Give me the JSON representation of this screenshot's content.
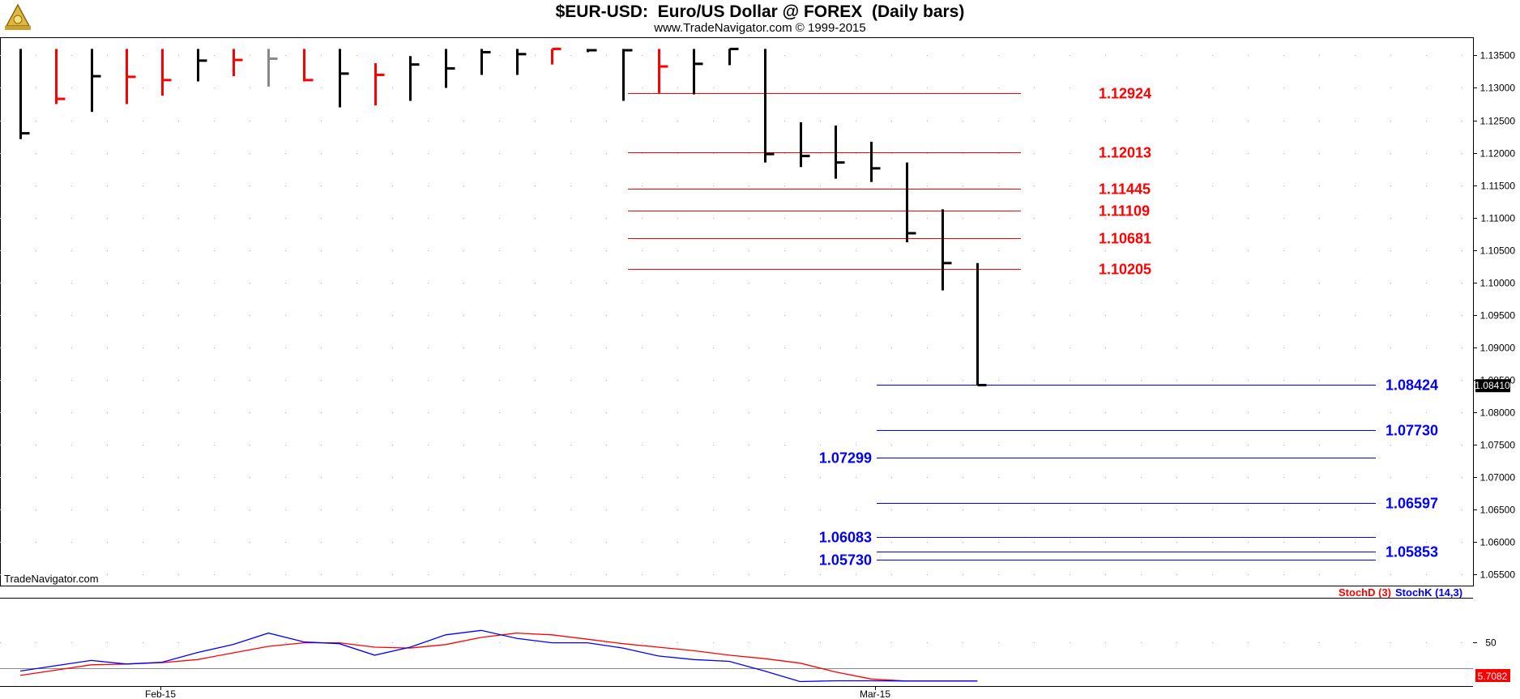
{
  "header": {
    "title": "$EUR-USD:  Euro/US Dollar @ FOREX  (Daily bars)",
    "copyright": "www.TradeNavigator.com © 1999-2015"
  },
  "watermark": "TradeNavigator.com",
  "indicator_legend": {
    "stoch_d": "StochD (3)",
    "stoch_k": "StochK (14,3)"
  },
  "colors": {
    "red": "#ff0000",
    "blue": "#0000ff",
    "black": "#000000",
    "gray": "#888888"
  },
  "chart_data": [
    {
      "type": "ohlc",
      "title": "$EUR-USD:  Euro/US Dollar @ FOREX  (Daily bars)",
      "ylim": [
        1.0533,
        1.1378
      ],
      "y_ticks": [
        "1.13500",
        "1.13000",
        "1.12500",
        "1.12000",
        "1.11500",
        "1.11000",
        "1.10500",
        "1.10000",
        "1.09500",
        "1.09000",
        "1.08500",
        "1.08000",
        "1.07500",
        "1.07000",
        "1.06500",
        "1.06000",
        "1.05500"
      ],
      "x_tick_labels": [
        "Feb-15",
        "Mar-15"
      ],
      "last_price": "1.08410",
      "bars": [
        {
          "high": 1.136,
          "low": 1.1221,
          "close": 1.123,
          "color": "black"
        },
        {
          "high": 1.136,
          "low": 1.1275,
          "close": 1.1283,
          "color": "red"
        },
        {
          "high": 1.136,
          "low": 1.1263,
          "close": 1.1318,
          "color": "black"
        },
        {
          "high": 1.136,
          "low": 1.1275,
          "close": 1.1317,
          "color": "red"
        },
        {
          "high": 1.136,
          "low": 1.1288,
          "close": 1.1312,
          "color": "red"
        },
        {
          "high": 1.136,
          "low": 1.131,
          "close": 1.1342,
          "color": "black"
        },
        {
          "high": 1.136,
          "low": 1.1318,
          "close": 1.1343,
          "color": "red"
        },
        {
          "high": 1.136,
          "low": 1.1302,
          "close": 1.1345,
          "color": "gray"
        },
        {
          "high": 1.136,
          "low": 1.131,
          "close": 1.1312,
          "color": "red"
        },
        {
          "high": 1.136,
          "low": 1.127,
          "close": 1.1322,
          "color": "black"
        },
        {
          "high": 1.1338,
          "low": 1.1273,
          "close": 1.132,
          "color": "red"
        },
        {
          "high": 1.1349,
          "low": 1.128,
          "close": 1.1336,
          "color": "black"
        },
        {
          "high": 1.136,
          "low": 1.13,
          "close": 1.133,
          "color": "black"
        },
        {
          "high": 1.136,
          "low": 1.132,
          "close": 1.1355,
          "color": "black"
        },
        {
          "high": 1.136,
          "low": 1.132,
          "close": 1.1352,
          "color": "black"
        },
        {
          "high": 1.136,
          "low": 1.1336,
          "close": 1.136,
          "color": "red"
        },
        {
          "high": 1.136,
          "low": 1.1355,
          "close": 1.1358,
          "color": "black"
        },
        {
          "high": 1.136,
          "low": 1.128,
          "close": 1.1358,
          "color": "black"
        },
        {
          "high": 1.136,
          "low": 1.1292,
          "close": 1.1333,
          "color": "red"
        },
        {
          "high": 1.136,
          "low": 1.129,
          "close": 1.1337,
          "color": "black"
        },
        {
          "high": 1.136,
          "low": 1.1335,
          "close": 1.136,
          "color": "black"
        },
        {
          "high": 1.136,
          "low": 1.1185,
          "close": 1.1198,
          "color": "black"
        },
        {
          "high": 1.1247,
          "low": 1.1178,
          "close": 1.1195,
          "color": "black"
        },
        {
          "high": 1.1242,
          "low": 1.116,
          "close": 1.1185,
          "color": "black"
        },
        {
          "high": 1.1217,
          "low": 1.1155,
          "close": 1.1176,
          "color": "black"
        },
        {
          "high": 1.1185,
          "low": 1.1062,
          "close": 1.1076,
          "color": "black"
        },
        {
          "high": 1.1113,
          "low": 1.0988,
          "close": 1.103,
          "color": "black"
        },
        {
          "high": 1.103,
          "low": 1.0842,
          "close": 1.0842,
          "color": "black"
        }
      ],
      "resistance_levels": [
        "1.12924",
        "1.12013",
        "1.11445",
        "1.11109",
        "1.10681",
        "1.10205"
      ],
      "support_levels": [
        "1.08424",
        "1.07730",
        "1.07299",
        "1.06597",
        "1.06083",
        "1.05853",
        "1.05730"
      ]
    },
    {
      "type": "line",
      "series": [
        {
          "name": "StochD (3)",
          "color": "red",
          "values": [
            12.0,
            18.0,
            24.0,
            25.0,
            26.5,
            30.0,
            37.5,
            45.0,
            49.0,
            49.0,
            44.0,
            43.0,
            47.0,
            55.0,
            60.0,
            58.0,
            53.0,
            48.0,
            44.0,
            40.0,
            35.0,
            31.0,
            26.0,
            16.0,
            8.0,
            5.7,
            5.7,
            5.7
          ]
        },
        {
          "name": "StochK (14,3)",
          "color": "blue",
          "values": [
            17.0,
            23.0,
            29.0,
            25.0,
            27.0,
            38.0,
            47.0,
            60.0,
            50.0,
            48.0,
            35.0,
            44.0,
            58.0,
            63.0,
            54.0,
            49.0,
            49.0,
            43.0,
            34.0,
            30.0,
            28.0,
            17.0,
            5.0,
            6.0,
            6.0,
            5.7,
            5.7,
            5.7
          ]
        }
      ],
      "ylim": [
        0,
        100
      ],
      "y_ticks": [
        "50"
      ],
      "reference_line": 20,
      "last_value": "5.7082"
    }
  ]
}
